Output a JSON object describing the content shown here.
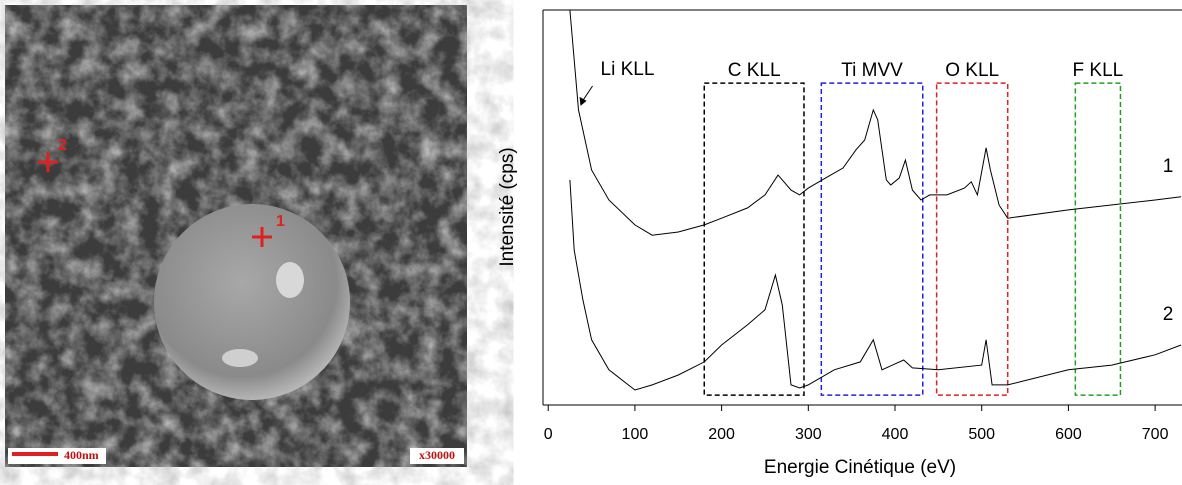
{
  "image": {
    "markers": [
      "1",
      "2"
    ],
    "scale_bar": "400nm",
    "magnification": "x30000"
  },
  "chart_data": {
    "type": "line",
    "xlabel": "Energie Cinétique (eV)",
    "ylabel": "Intensité (cps)",
    "xlim": [
      -6,
      731
    ],
    "ylim": [
      0,
      100
    ],
    "xticks": [
      0,
      100,
      200,
      300,
      400,
      500,
      600,
      700
    ],
    "annotation": "Li KLL",
    "annotation_x": 35,
    "regions": [
      {
        "label": "C KLL",
        "x0": 180,
        "x1": 295,
        "y0": 2.5,
        "y1": 81.5,
        "color": "#000000"
      },
      {
        "label": "Ti MVV",
        "x0": 315,
        "x1": 432,
        "y0": 2.5,
        "y1": 81.5,
        "color": "#2020e0"
      },
      {
        "label": "O KLL",
        "x0": 448,
        "x1": 530,
        "y0": 2.5,
        "y1": 81.5,
        "color": "#e02020"
      },
      {
        "label": "F KLL",
        "x0": 608,
        "x1": 660,
        "y0": 2.5,
        "y1": 81.5,
        "color": "#20a020"
      }
    ],
    "series": [
      {
        "name": "1",
        "color": "#000000",
        "x": [
          25,
          35,
          50,
          70,
          100,
          120,
          150,
          180,
          200,
          230,
          250,
          265,
          270,
          280,
          290,
          300,
          320,
          340,
          355,
          365,
          375,
          380,
          390,
          395,
          405,
          412,
          420,
          430,
          440,
          460,
          480,
          488,
          495,
          505,
          510,
          520,
          530,
          600,
          700,
          730
        ],
        "values": [
          100,
          74.7,
          59.5,
          51.9,
          45.6,
          43.0,
          43.8,
          45.6,
          47.3,
          49.9,
          53.2,
          58.2,
          57.0,
          54.4,
          53.2,
          54.9,
          57.5,
          60.0,
          64.6,
          67.1,
          74.7,
          72.2,
          57.0,
          55.7,
          57.5,
          62.0,
          54.4,
          51.9,
          53.2,
          53.2,
          54.9,
          56.5,
          53.2,
          65.1,
          59.5,
          50.6,
          47.3,
          49.4,
          51.9,
          52.7
        ]
      },
      {
        "name": "2",
        "color": "#000000",
        "x": [
          25,
          30,
          40,
          50,
          70,
          100,
          120,
          150,
          180,
          200,
          230,
          250,
          262,
          270,
          280,
          290,
          300,
          330,
          360,
          375,
          385,
          410,
          420,
          450,
          500,
          505,
          512,
          530,
          600,
          650,
          700,
          730
        ],
        "values": [
          57.0,
          39.2,
          26.6,
          16.5,
          8.9,
          3.8,
          5.1,
          7.6,
          10.9,
          15.2,
          20.3,
          24.1,
          32.9,
          25.3,
          5.1,
          4.3,
          5.1,
          8.9,
          10.9,
          16.5,
          8.9,
          11.4,
          9.4,
          8.9,
          10.1,
          16.5,
          5.1,
          5.1,
          8.9,
          10.1,
          12.7,
          15.2
        ]
      }
    ]
  }
}
